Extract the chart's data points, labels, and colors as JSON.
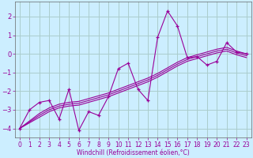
{
  "xlabel": "Windchill (Refroidissement éolien,°C)",
  "background_color": "#cceeff",
  "grid_color": "#aacccc",
  "line_color": "#990099",
  "xlim": [
    -0.5,
    23.5
  ],
  "ylim": [
    -4.5,
    2.8
  ],
  "yticks": [
    -4,
    -3,
    -2,
    -1,
    0,
    1,
    2
  ],
  "xticks": [
    0,
    1,
    2,
    3,
    4,
    5,
    6,
    7,
    8,
    9,
    10,
    11,
    12,
    13,
    14,
    15,
    16,
    17,
    18,
    19,
    20,
    21,
    22,
    23
  ],
  "y_main": [
    -4.0,
    -3.0,
    -2.6,
    -2.5,
    -3.5,
    -1.9,
    -4.1,
    -3.1,
    -3.3,
    -2.3,
    -0.8,
    -0.5,
    -1.9,
    -2.5,
    0.9,
    2.3,
    1.5,
    -0.2,
    -0.15,
    -0.6,
    -0.4,
    0.6,
    0.1,
    0.0
  ],
  "y_trend1": [
    -4.0,
    -3.6,
    -3.2,
    -2.9,
    -2.7,
    -2.6,
    -2.55,
    -2.4,
    -2.25,
    -2.1,
    -1.9,
    -1.7,
    -1.5,
    -1.3,
    -1.05,
    -0.75,
    -0.45,
    -0.2,
    -0.05,
    0.1,
    0.25,
    0.35,
    0.15,
    0.0
  ],
  "y_trend2": [
    -4.0,
    -3.65,
    -3.3,
    -3.0,
    -2.8,
    -2.7,
    -2.65,
    -2.5,
    -2.35,
    -2.2,
    -2.0,
    -1.8,
    -1.6,
    -1.4,
    -1.15,
    -0.85,
    -0.55,
    -0.3,
    -0.15,
    0.0,
    0.15,
    0.25,
    0.05,
    -0.1
  ],
  "y_trend3": [
    -4.0,
    -3.7,
    -3.4,
    -3.1,
    -2.9,
    -2.8,
    -2.75,
    -2.6,
    -2.45,
    -2.3,
    -2.1,
    -1.9,
    -1.7,
    -1.5,
    -1.25,
    -0.95,
    -0.65,
    -0.4,
    -0.25,
    -0.1,
    0.05,
    0.15,
    -0.05,
    -0.2
  ]
}
